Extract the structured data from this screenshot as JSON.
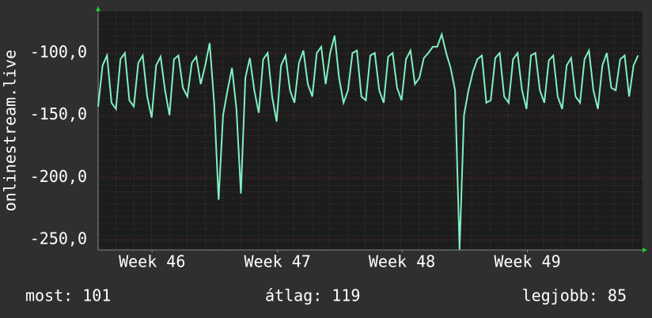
{
  "chart_data": {
    "type": "line",
    "ylabel": "onlinestream.live",
    "series": [
      {
        "name": "onlinestream.live",
        "color": "#80f0c0",
        "values": [
          -143,
          -110,
          -102,
          -140,
          -145,
          -105,
          -100,
          -138,
          -143,
          -108,
          -102,
          -135,
          -152,
          -110,
          -103,
          -130,
          -150,
          -105,
          -102,
          -128,
          -135,
          -108,
          -103,
          -125,
          -110,
          -92,
          -140,
          -218,
          -150,
          -130,
          -112,
          -145,
          -213,
          -120,
          -104,
          -130,
          -148,
          -105,
          -100,
          -135,
          -155,
          -110,
          -102,
          -130,
          -140,
          -108,
          -98,
          -125,
          -135,
          -100,
          -95,
          -125,
          -100,
          -86,
          -120,
          -140,
          -130,
          -100,
          -98,
          -135,
          -138,
          -102,
          -100,
          -130,
          -140,
          -103,
          -100,
          -128,
          -138,
          -105,
          -98,
          -125,
          -120,
          -104,
          -100,
          -95,
          -95,
          -85,
          -100,
          -112,
          -130,
          -258,
          -150,
          -130,
          -115,
          -105,
          -102,
          -140,
          -138,
          -104,
          -100,
          -135,
          -140,
          -105,
          -100,
          -130,
          -145,
          -102,
          -100,
          -130,
          -140,
          -106,
          -102,
          -135,
          -145,
          -110,
          -104,
          -135,
          -140,
          -105,
          -98,
          -130,
          -145,
          -110,
          -100,
          -128,
          -130,
          -105,
          -102,
          -135,
          -110,
          -102
        ]
      }
    ],
    "xlim": [
      0,
      122
    ],
    "xticks": [
      {
        "value": 12.1,
        "label": "Week 46"
      },
      {
        "value": 40.2,
        "label": "Week 47"
      },
      {
        "value": 68.1,
        "label": "Week 48"
      },
      {
        "value": 96.2,
        "label": "Week 49"
      }
    ],
    "ylim": [
      -258.3,
      -66.3
    ],
    "yticks": [
      {
        "value": -100,
        "label": "-100,0"
      },
      {
        "value": -150,
        "label": "-150,0"
      },
      {
        "value": -200,
        "label": "-200,0"
      },
      {
        "value": -250,
        "label": "-250,0"
      }
    ],
    "grid": true,
    "footer": [
      "most: 101",
      "átlag: 119",
      "legjobb: 85"
    ]
  }
}
